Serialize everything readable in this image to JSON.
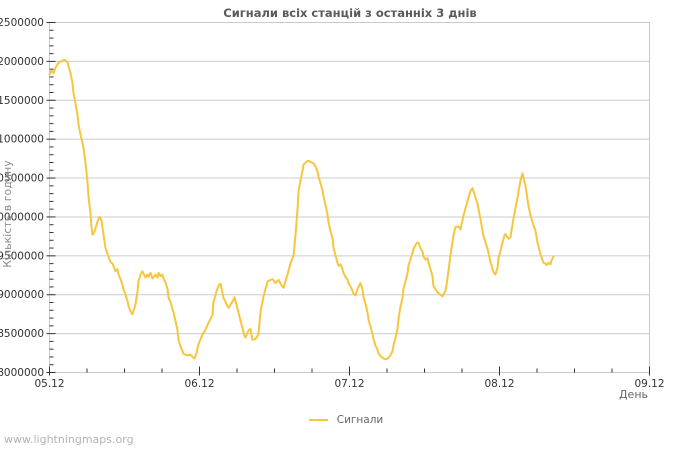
{
  "page": {
    "watermark": "www.lightningmaps.org"
  },
  "legend": {
    "items": [
      {
        "label": "Сигнали",
        "color": "#f5c63e"
      }
    ]
  },
  "style": {
    "background": "#ffffff",
    "plot_border": "#c9c9c9",
    "grid_color": "#cccccc",
    "tick_color": "#333333",
    "axis_text_color": "#333333",
    "title_color": "#5a5a5a",
    "muted_text_color": "#666666",
    "y_title_color": "#8c8c8c",
    "watermark_color": "#b3b3b3",
    "line_color": "#f5c63e"
  },
  "chart_data": {
    "type": "line",
    "title": "Сигнали всіх станцій з останніх 3 днів",
    "xlabel": "День",
    "ylabel": "Кількість в годину",
    "grid": "horizontal-only",
    "legend_position": "bottom-center",
    "xlim_days": [
      0,
      4
    ],
    "ylim": [
      8000000,
      12500000
    ],
    "y_major_step": 500000,
    "y_minor_step": 100000,
    "x_minor_step_day": 0.25,
    "x_major_ticks": [
      {
        "day": 0,
        "label": "05.12"
      },
      {
        "day": 1,
        "label": "06.12"
      },
      {
        "day": 2,
        "label": "07.12"
      },
      {
        "day": 3,
        "label": "08.12"
      },
      {
        "day": 4,
        "label": "09.12"
      }
    ],
    "series": [
      {
        "name": "Сигнали",
        "color": "#f5c63e",
        "points_day_value": [
          [
            0.0,
            11830000
          ],
          [
            0.013,
            11880000
          ],
          [
            0.027,
            11850000
          ],
          [
            0.04,
            11920000
          ],
          [
            0.06,
            11980000
          ],
          [
            0.087,
            12010000
          ],
          [
            0.1,
            12020000
          ],
          [
            0.12,
            11990000
          ],
          [
            0.127,
            11940000
          ],
          [
            0.14,
            11850000
          ],
          [
            0.153,
            11720000
          ],
          [
            0.16,
            11590000
          ],
          [
            0.173,
            11460000
          ],
          [
            0.187,
            11310000
          ],
          [
            0.193,
            11190000
          ],
          [
            0.207,
            11060000
          ],
          [
            0.22,
            10950000
          ],
          [
            0.227,
            10880000
          ],
          [
            0.24,
            10690000
          ],
          [
            0.253,
            10450000
          ],
          [
            0.26,
            10260000
          ],
          [
            0.273,
            10040000
          ],
          [
            0.28,
            9870000
          ],
          [
            0.287,
            9770000
          ],
          [
            0.3,
            9810000
          ],
          [
            0.32,
            9940000
          ],
          [
            0.333,
            10000000
          ],
          [
            0.347,
            9960000
          ],
          [
            0.353,
            9870000
          ],
          [
            0.373,
            9600000
          ],
          [
            0.387,
            9520000
          ],
          [
            0.407,
            9420000
          ],
          [
            0.42,
            9400000
          ],
          [
            0.427,
            9370000
          ],
          [
            0.44,
            9300000
          ],
          [
            0.453,
            9330000
          ],
          [
            0.46,
            9260000
          ],
          [
            0.473,
            9200000
          ],
          [
            0.487,
            9130000
          ],
          [
            0.493,
            9070000
          ],
          [
            0.507,
            9000000
          ],
          [
            0.52,
            8920000
          ],
          [
            0.527,
            8850000
          ],
          [
            0.54,
            8790000
          ],
          [
            0.553,
            8750000
          ],
          [
            0.573,
            8870000
          ],
          [
            0.587,
            9050000
          ],
          [
            0.593,
            9170000
          ],
          [
            0.607,
            9260000
          ],
          [
            0.62,
            9300000
          ],
          [
            0.64,
            9220000
          ],
          [
            0.653,
            9260000
          ],
          [
            0.66,
            9230000
          ],
          [
            0.673,
            9280000
          ],
          [
            0.687,
            9210000
          ],
          [
            0.707,
            9260000
          ],
          [
            0.72,
            9220000
          ],
          [
            0.727,
            9280000
          ],
          [
            0.74,
            9240000
          ],
          [
            0.753,
            9260000
          ],
          [
            0.76,
            9210000
          ],
          [
            0.773,
            9160000
          ],
          [
            0.787,
            9070000
          ],
          [
            0.793,
            8970000
          ],
          [
            0.807,
            8900000
          ],
          [
            0.827,
            8770000
          ],
          [
            0.84,
            8660000
          ],
          [
            0.853,
            8550000
          ],
          [
            0.86,
            8420000
          ],
          [
            0.873,
            8340000
          ],
          [
            0.887,
            8270000
          ],
          [
            0.893,
            8240000
          ],
          [
            0.92,
            8220000
          ],
          [
            0.94,
            8230000
          ],
          [
            0.953,
            8200000
          ],
          [
            0.967,
            8180000
          ],
          [
            0.98,
            8250000
          ],
          [
            0.993,
            8360000
          ],
          [
            1.02,
            8490000
          ],
          [
            1.04,
            8550000
          ],
          [
            1.06,
            8640000
          ],
          [
            1.087,
            8740000
          ],
          [
            1.093,
            8900000
          ],
          [
            1.113,
            9040000
          ],
          [
            1.127,
            9120000
          ],
          [
            1.14,
            9140000
          ],
          [
            1.16,
            8960000
          ],
          [
            1.187,
            8850000
          ],
          [
            1.193,
            8830000
          ],
          [
            1.22,
            8910000
          ],
          [
            1.233,
            8970000
          ],
          [
            1.26,
            8770000
          ],
          [
            1.287,
            8570000
          ],
          [
            1.3,
            8470000
          ],
          [
            1.307,
            8450000
          ],
          [
            1.327,
            8540000
          ],
          [
            1.34,
            8560000
          ],
          [
            1.353,
            8420000
          ],
          [
            1.373,
            8430000
          ],
          [
            1.393,
            8490000
          ],
          [
            1.407,
            8790000
          ],
          [
            1.427,
            8980000
          ],
          [
            1.453,
            9170000
          ],
          [
            1.473,
            9190000
          ],
          [
            1.487,
            9200000
          ],
          [
            1.507,
            9150000
          ],
          [
            1.527,
            9190000
          ],
          [
            1.547,
            9120000
          ],
          [
            1.56,
            9090000
          ],
          [
            1.587,
            9260000
          ],
          [
            1.607,
            9410000
          ],
          [
            1.627,
            9500000
          ],
          [
            1.64,
            9770000
          ],
          [
            1.653,
            10090000
          ],
          [
            1.66,
            10330000
          ],
          [
            1.673,
            10470000
          ],
          [
            1.687,
            10600000
          ],
          [
            1.693,
            10670000
          ],
          [
            1.707,
            10700000
          ],
          [
            1.72,
            10720000
          ],
          [
            1.74,
            10710000
          ],
          [
            1.76,
            10690000
          ],
          [
            1.773,
            10650000
          ],
          [
            1.787,
            10580000
          ],
          [
            1.793,
            10520000
          ],
          [
            1.807,
            10430000
          ],
          [
            1.82,
            10340000
          ],
          [
            1.827,
            10260000
          ],
          [
            1.84,
            10150000
          ],
          [
            1.853,
            10040000
          ],
          [
            1.86,
            9930000
          ],
          [
            1.873,
            9820000
          ],
          [
            1.887,
            9720000
          ],
          [
            1.893,
            9610000
          ],
          [
            1.907,
            9500000
          ],
          [
            1.92,
            9410000
          ],
          [
            1.927,
            9370000
          ],
          [
            1.94,
            9390000
          ],
          [
            1.953,
            9330000
          ],
          [
            1.96,
            9280000
          ],
          [
            1.973,
            9230000
          ],
          [
            1.987,
            9190000
          ],
          [
            1.993,
            9150000
          ],
          [
            2.007,
            9100000
          ],
          [
            2.02,
            9050000
          ],
          [
            2.027,
            9010000
          ],
          [
            2.04,
            8990000
          ],
          [
            2.053,
            9070000
          ],
          [
            2.073,
            9150000
          ],
          [
            2.087,
            9070000
          ],
          [
            2.093,
            8970000
          ],
          [
            2.107,
            8880000
          ],
          [
            2.12,
            8770000
          ],
          [
            2.127,
            8680000
          ],
          [
            2.14,
            8590000
          ],
          [
            2.153,
            8500000
          ],
          [
            2.16,
            8430000
          ],
          [
            2.173,
            8350000
          ],
          [
            2.187,
            8290000
          ],
          [
            2.193,
            8250000
          ],
          [
            2.207,
            8210000
          ],
          [
            2.22,
            8190000
          ],
          [
            2.227,
            8180000
          ],
          [
            2.24,
            8170000
          ],
          [
            2.253,
            8180000
          ],
          [
            2.26,
            8190000
          ],
          [
            2.273,
            8220000
          ],
          [
            2.287,
            8280000
          ],
          [
            2.293,
            8350000
          ],
          [
            2.307,
            8450000
          ],
          [
            2.32,
            8560000
          ],
          [
            2.327,
            8700000
          ],
          [
            2.34,
            8850000
          ],
          [
            2.353,
            8960000
          ],
          [
            2.36,
            9080000
          ],
          [
            2.373,
            9170000
          ],
          [
            2.387,
            9280000
          ],
          [
            2.393,
            9370000
          ],
          [
            2.407,
            9460000
          ],
          [
            2.42,
            9540000
          ],
          [
            2.427,
            9590000
          ],
          [
            2.44,
            9640000
          ],
          [
            2.453,
            9670000
          ],
          [
            2.46,
            9670000
          ],
          [
            2.473,
            9600000
          ],
          [
            2.487,
            9550000
          ],
          [
            2.493,
            9490000
          ],
          [
            2.507,
            9450000
          ],
          [
            2.52,
            9470000
          ],
          [
            2.527,
            9410000
          ],
          [
            2.54,
            9330000
          ],
          [
            2.553,
            9240000
          ],
          [
            2.56,
            9110000
          ],
          [
            2.587,
            9030000
          ],
          [
            2.607,
            9000000
          ],
          [
            2.62,
            8980000
          ],
          [
            2.64,
            9050000
          ],
          [
            2.653,
            9200000
          ],
          [
            2.673,
            9500000
          ],
          [
            2.693,
            9760000
          ],
          [
            2.707,
            9870000
          ],
          [
            2.727,
            9880000
          ],
          [
            2.74,
            9840000
          ],
          [
            2.76,
            10020000
          ],
          [
            2.787,
            10210000
          ],
          [
            2.807,
            10340000
          ],
          [
            2.82,
            10370000
          ],
          [
            2.84,
            10250000
          ],
          [
            2.853,
            10170000
          ],
          [
            2.873,
            9970000
          ],
          [
            2.893,
            9760000
          ],
          [
            2.92,
            9590000
          ],
          [
            2.94,
            9420000
          ],
          [
            2.96,
            9290000
          ],
          [
            2.973,
            9260000
          ],
          [
            2.987,
            9350000
          ],
          [
            2.993,
            9460000
          ],
          [
            3.02,
            9670000
          ],
          [
            3.033,
            9760000
          ],
          [
            3.04,
            9780000
          ],
          [
            3.053,
            9740000
          ],
          [
            3.06,
            9720000
          ],
          [
            3.073,
            9740000
          ],
          [
            3.093,
            9980000
          ],
          [
            3.12,
            10250000
          ],
          [
            3.14,
            10470000
          ],
          [
            3.153,
            10560000
          ],
          [
            3.167,
            10450000
          ],
          [
            3.173,
            10400000
          ],
          [
            3.193,
            10140000
          ],
          [
            3.207,
            10020000
          ],
          [
            3.227,
            9890000
          ],
          [
            3.24,
            9820000
          ],
          [
            3.253,
            9670000
          ],
          [
            3.273,
            9520000
          ],
          [
            3.293,
            9410000
          ],
          [
            3.307,
            9400000
          ],
          [
            3.313,
            9380000
          ],
          [
            3.327,
            9410000
          ],
          [
            3.34,
            9390000
          ],
          [
            3.347,
            9440000
          ],
          [
            3.36,
            9490000
          ]
        ]
      }
    ]
  }
}
